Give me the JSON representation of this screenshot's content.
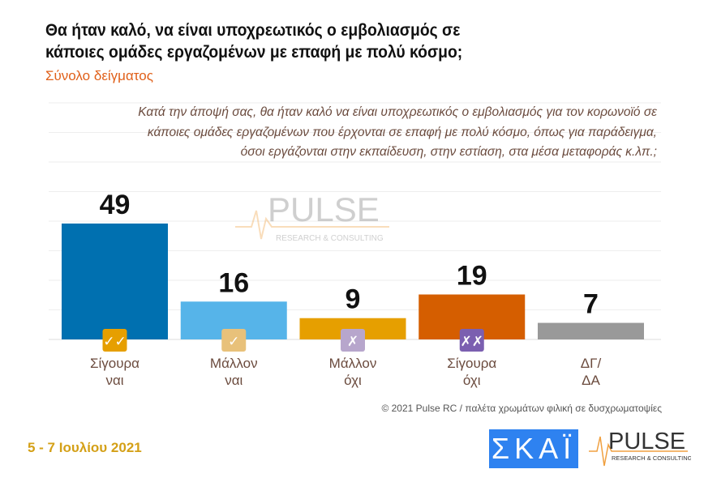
{
  "title": "Θα ήταν καλό, να είναι υποχρεωτικός ο εμβολιασμός σε κάποιες ομάδες εργαζομένων με επαφή με πολύ κόσμο;",
  "subtitle": "Σύνολο δείγματος",
  "question": "Κατά την άποψή σας, θα ήταν καλό να είναι υποχρεωτικός ο εμβολιασμός για τον κορωνοϊό σε κάποιες ομάδες εργαζομένων που έρχονται σε επαφή με πολύ κόσμο, όπως για παράδειγμα, όσοι εργάζονται στην εκπαίδευση, στην εστίαση, στα μέσα μεταφοράς κ.λπ.;",
  "copyright": "© 2021 Pulse RC  /  παλέτα χρωμάτων φιλική σε δυσχρωματοψίες",
  "date": "5 - 7  Ιουλίου  2021",
  "logos": {
    "skai": "ΣΚΑΪ",
    "pulse": "PULSE",
    "pulse_sub": "RESEARCH & CONSULTING"
  },
  "chart_data": {
    "type": "bar",
    "categories": [
      "Σίγουρα ναι",
      "Μάλλον ναι",
      "Μάλλον όχι",
      "Σίγουρα όχι",
      "ΔΓ/ ΔΑ"
    ],
    "values": [
      49,
      16,
      9,
      19,
      7
    ],
    "colors": [
      "#0070b0",
      "#56b4e9",
      "#e69f00",
      "#d55e00",
      "#999999"
    ],
    "icon_marks": [
      "✓✓",
      "✓",
      "✗",
      "✗✗",
      ""
    ],
    "icon_colors": [
      "#e69f00",
      "#e8c17a",
      "#b7a6cc",
      "#7b5fb0",
      ""
    ],
    "ylim": [
      0,
      50
    ],
    "grid": true
  }
}
